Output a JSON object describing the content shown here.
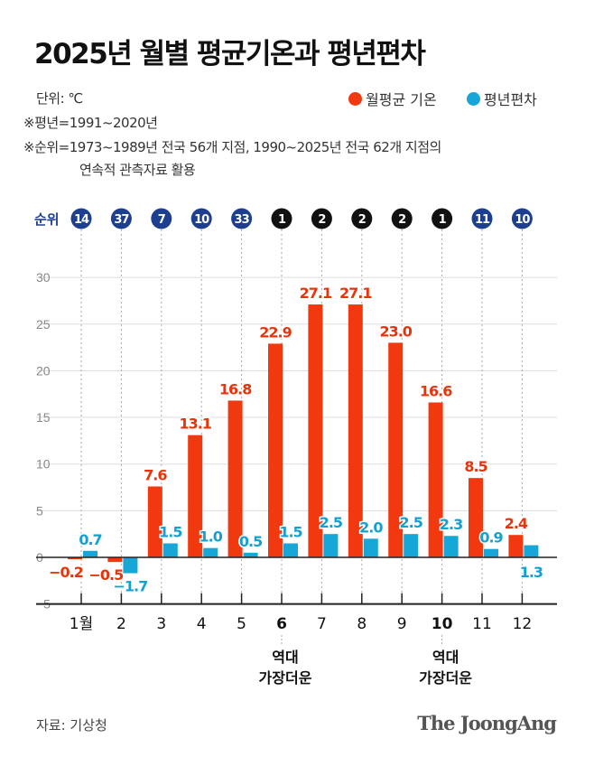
{
  "title": "2025년 월별 평균기온과 평년편차",
  "notes": {
    "unit": "단위: ℃",
    "normal": "※평년=1991~2020년",
    "rank_line1": "※순위=1973~1989년 전국 56개 지점, 1990~2025년 전국 62개 지점의",
    "rank_line2": "연속적 관측자료 활용"
  },
  "source": "자료: 기상청",
  "logo": "The JoongAng",
  "chart_data": {
    "type": "bar",
    "categories": [
      "1월",
      "2",
      "3",
      "4",
      "5",
      "6",
      "7",
      "8",
      "9",
      "10",
      "11",
      "12"
    ],
    "bold_categories": [
      "6",
      "10"
    ],
    "series": [
      {
        "name": "월평균 기온",
        "color": "#f2380f",
        "values": [
          -0.2,
          -0.5,
          7.6,
          13.1,
          16.8,
          22.9,
          27.1,
          27.1,
          23.0,
          16.6,
          8.5,
          2.4
        ]
      },
      {
        "name": "평년편차",
        "color": "#16a6d8",
        "values": [
          0.7,
          -1.7,
          1.5,
          1.0,
          0.5,
          1.5,
          2.5,
          2.0,
          2.5,
          2.3,
          0.9,
          1.3
        ]
      }
    ],
    "rank_label": "순위",
    "ranks": [
      14,
      37,
      7,
      10,
      33,
      1,
      2,
      2,
      2,
      1,
      11,
      10
    ],
    "rank_colors": {
      "top": "#111111",
      "other": "#1e3f8f"
    },
    "yticks": [
      30,
      25,
      20,
      15,
      10,
      5,
      0,
      -5
    ],
    "ylim": [
      -5,
      30
    ],
    "grid": true,
    "legend": "top-right",
    "annotations": [
      {
        "category": "6",
        "text": [
          "역대",
          "가장더운"
        ]
      },
      {
        "category": "10",
        "text": [
          "역대",
          "가장더운"
        ]
      }
    ]
  }
}
